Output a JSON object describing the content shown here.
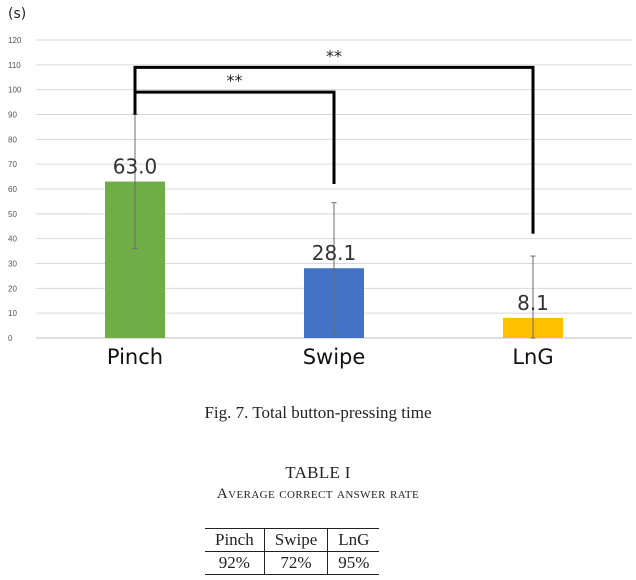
{
  "chart_data": {
    "type": "bar",
    "unit_label": "(s)",
    "categories": [
      "Pinch",
      "Swipe",
      "LnG"
    ],
    "values": [
      63.0,
      28.1,
      8.1
    ],
    "value_labels": [
      "63.0",
      "28.1",
      "8.1"
    ],
    "error_high": [
      90,
      54.5,
      33
    ],
    "error_low": [
      36,
      1.5,
      0
    ],
    "colors": [
      "#70ad47",
      "#4472c4",
      "#ffc000"
    ],
    "ylim": [
      0,
      120
    ],
    "yticks": [
      0,
      10,
      20,
      30,
      40,
      50,
      60,
      70,
      80,
      90,
      100,
      110,
      120
    ],
    "grid": true,
    "significance": [
      {
        "from": "Pinch",
        "to": "Swipe",
        "label": "**"
      },
      {
        "from": "Pinch",
        "to": "LnG",
        "label": "**"
      }
    ]
  },
  "figure": {
    "caption": "Fig. 7.  Total button-pressing time"
  },
  "table": {
    "title": "TABLE I",
    "subtitle": "Average correct answer rate",
    "headers": [
      "Pinch",
      "Swipe",
      "LnG"
    ],
    "values": [
      "92%",
      "72%",
      "95%"
    ]
  }
}
